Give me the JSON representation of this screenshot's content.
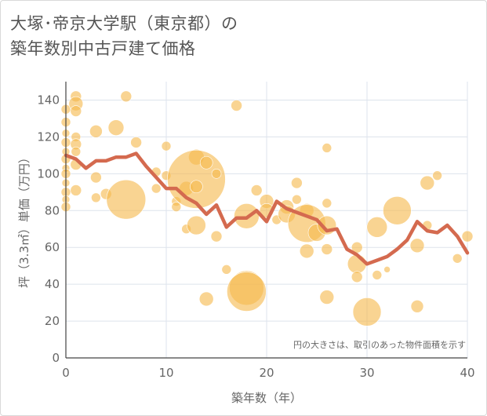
{
  "title_line1": "大塚･帝京大学駅（東京都）の",
  "title_line2": "築年数別中古戸建て価格",
  "colors": {
    "bubble": "#f5b94f",
    "line": "#d46a4f",
    "grid": "#dde3ec",
    "axis": "#444444"
  },
  "chart_data": {
    "type": "scatter",
    "xlabel": "築年数（年）",
    "ylabel": "坪（3.3㎡）単価（万円）",
    "xlim": [
      0,
      40
    ],
    "ylim": [
      0,
      150
    ],
    "x_ticks": [
      0,
      10,
      20,
      30,
      40
    ],
    "y_ticks": [
      0,
      20,
      40,
      60,
      80,
      100,
      120,
      140
    ],
    "grid": true,
    "note": "円の大きさは、取引のあった物件面積を示す",
    "bubbles": [
      {
        "x": 0,
        "y": 135,
        "s": 6
      },
      {
        "x": 0,
        "y": 128,
        "s": 6
      },
      {
        "x": 0,
        "y": 122,
        "s": 5
      },
      {
        "x": 0,
        "y": 117,
        "s": 6
      },
      {
        "x": 0,
        "y": 112,
        "s": 5
      },
      {
        "x": 0,
        "y": 108,
        "s": 6
      },
      {
        "x": 0,
        "y": 103,
        "s": 5
      },
      {
        "x": 0,
        "y": 100,
        "s": 6
      },
      {
        "x": 0,
        "y": 95,
        "s": 5
      },
      {
        "x": 0,
        "y": 90,
        "s": 6
      },
      {
        "x": 0,
        "y": 86,
        "s": 5
      },
      {
        "x": 0,
        "y": 82,
        "s": 6
      },
      {
        "x": 1,
        "y": 142,
        "s": 7
      },
      {
        "x": 1,
        "y": 138,
        "s": 9
      },
      {
        "x": 1,
        "y": 134,
        "s": 7
      },
      {
        "x": 1,
        "y": 120,
        "s": 6
      },
      {
        "x": 1,
        "y": 116,
        "s": 7
      },
      {
        "x": 1,
        "y": 112,
        "s": 6
      },
      {
        "x": 1,
        "y": 105,
        "s": 7
      },
      {
        "x": 1,
        "y": 91,
        "s": 7
      },
      {
        "x": 3,
        "y": 123,
        "s": 8
      },
      {
        "x": 3,
        "y": 98,
        "s": 7
      },
      {
        "x": 3,
        "y": 87,
        "s": 6
      },
      {
        "x": 4,
        "y": 89,
        "s": 7
      },
      {
        "x": 5,
        "y": 125,
        "s": 10
      },
      {
        "x": 6,
        "y": 142,
        "s": 7
      },
      {
        "x": 6,
        "y": 86,
        "s": 25
      },
      {
        "x": 7,
        "y": 117,
        "s": 7
      },
      {
        "x": 9,
        "y": 101,
        "s": 6
      },
      {
        "x": 9,
        "y": 92,
        "s": 6
      },
      {
        "x": 10,
        "y": 115,
        "s": 6
      },
      {
        "x": 10,
        "y": 99,
        "s": 6
      },
      {
        "x": 11,
        "y": 85,
        "s": 6
      },
      {
        "x": 11,
        "y": 82,
        "s": 6
      },
      {
        "x": 12,
        "y": 92,
        "s": 9
      },
      {
        "x": 12,
        "y": 70,
        "s": 6
      },
      {
        "x": 13,
        "y": 109,
        "s": 10
      },
      {
        "x": 13,
        "y": 97,
        "s": 37
      },
      {
        "x": 13,
        "y": 93,
        "s": 8
      },
      {
        "x": 13,
        "y": 72,
        "s": 12
      },
      {
        "x": 14,
        "y": 106,
        "s": 8
      },
      {
        "x": 14,
        "y": 32,
        "s": 9
      },
      {
        "x": 15,
        "y": 100,
        "s": 6
      },
      {
        "x": 15,
        "y": 66,
        "s": 7
      },
      {
        "x": 17,
        "y": 137,
        "s": 7
      },
      {
        "x": 16,
        "y": 48,
        "s": 6
      },
      {
        "x": 18,
        "y": 77,
        "s": 16
      },
      {
        "x": 18,
        "y": 38,
        "s": 22
      },
      {
        "x": 18,
        "y": 36,
        "s": 25
      },
      {
        "x": 19,
        "y": 91,
        "s": 7
      },
      {
        "x": 20,
        "y": 85,
        "s": 9
      },
      {
        "x": 20,
        "y": 80,
        "s": 9
      },
      {
        "x": 21,
        "y": 75,
        "s": 6
      },
      {
        "x": 22,
        "y": 82,
        "s": 9
      },
      {
        "x": 22,
        "y": 78,
        "s": 11
      },
      {
        "x": 23,
        "y": 95,
        "s": 7
      },
      {
        "x": 23,
        "y": 86,
        "s": 6
      },
      {
        "x": 24,
        "y": 80,
        "s": 9
      },
      {
        "x": 24,
        "y": 73,
        "s": 24
      },
      {
        "x": 24,
        "y": 58,
        "s": 9
      },
      {
        "x": 25,
        "y": 68,
        "s": 11
      },
      {
        "x": 26,
        "y": 114,
        "s": 6
      },
      {
        "x": 26,
        "y": 84,
        "s": 6
      },
      {
        "x": 26,
        "y": 72,
        "s": 12
      },
      {
        "x": 26,
        "y": 59,
        "s": 7
      },
      {
        "x": 26,
        "y": 33,
        "s": 9
      },
      {
        "x": 29,
        "y": 60,
        "s": 7
      },
      {
        "x": 29,
        "y": 51,
        "s": 12
      },
      {
        "x": 29,
        "y": 44,
        "s": 7
      },
      {
        "x": 30,
        "y": 25,
        "s": 18
      },
      {
        "x": 31,
        "y": 71,
        "s": 13
      },
      {
        "x": 31,
        "y": 45,
        "s": 6
      },
      {
        "x": 32,
        "y": 48,
        "s": 4
      },
      {
        "x": 33,
        "y": 80,
        "s": 18
      },
      {
        "x": 35,
        "y": 61,
        "s": 9
      },
      {
        "x": 35,
        "y": 28,
        "s": 8
      },
      {
        "x": 36,
        "y": 95,
        "s": 9
      },
      {
        "x": 36,
        "y": 72,
        "s": 6
      },
      {
        "x": 37,
        "y": 99,
        "s": 6
      },
      {
        "x": 39,
        "y": 54,
        "s": 6
      },
      {
        "x": 40,
        "y": 66,
        "s": 7
      }
    ],
    "series": [
      {
        "x": [
          0,
          1,
          2,
          3,
          4,
          5,
          6,
          7,
          8,
          9,
          10,
          11,
          12,
          13,
          14,
          15,
          16,
          17,
          18,
          19,
          20,
          21,
          22,
          23,
          24,
          25,
          26,
          27,
          28,
          29,
          30,
          31,
          32,
          33,
          34,
          35,
          36,
          37,
          38,
          39,
          40
        ],
        "y": [
          110,
          108,
          103,
          107,
          107,
          109,
          109,
          111,
          104,
          98,
          92,
          92,
          87,
          84,
          78,
          83,
          71,
          76,
          76,
          80,
          74,
          85,
          81,
          79,
          77,
          75,
          69,
          70,
          59,
          56,
          51,
          53,
          55,
          59,
          64,
          74,
          69,
          68,
          72,
          66,
          57
        ]
      }
    ]
  }
}
